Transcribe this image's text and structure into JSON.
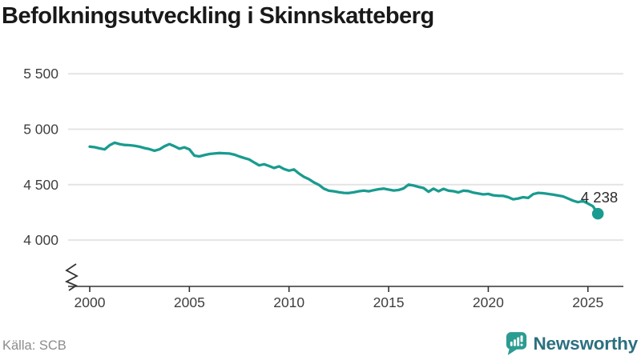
{
  "header": {
    "title": "Befolkningsutveckling i Skinnskatteberg"
  },
  "footer": {
    "source_label": "Källa: SCB",
    "brand": "Newsworthy"
  },
  "colors": {
    "line": "#1a9b8f",
    "grid": "#e4e4e4",
    "axis": "#333333",
    "tick_label": "#3f3f3f",
    "title": "#191919",
    "source": "#8c8c8c",
    "end_label": "#2b2b2b",
    "brand_icon": "#2b9c92",
    "brand_text": "#2c7080"
  },
  "chart_data": {
    "type": "line",
    "title": "Befolkningsutveckling i Skinnskatteberg",
    "xlabel": "",
    "ylabel": "",
    "x_ticks": [
      2000,
      2005,
      2010,
      2015,
      2020,
      2025
    ],
    "x_range": [
      1998.9,
      2026.8
    ],
    "y_ticks": [
      4000,
      4500,
      5000,
      5500
    ],
    "y_tick_labels": [
      "4 000",
      "4 500",
      "5 000",
      "5 500"
    ],
    "ylim_visible": [
      3950,
      5620
    ],
    "axis_break": true,
    "grid": "horizontal",
    "legend": "none",
    "end_label": "4 238",
    "end_value": 4238,
    "series": [
      {
        "name": "Befolkning",
        "points": [
          [
            2000.0,
            4843
          ],
          [
            2000.25,
            4838
          ],
          [
            2000.5,
            4827
          ],
          [
            2000.75,
            4818
          ],
          [
            2001.0,
            4856
          ],
          [
            2001.25,
            4878
          ],
          [
            2001.5,
            4866
          ],
          [
            2001.75,
            4858
          ],
          [
            2002.0,
            4856
          ],
          [
            2002.25,
            4850
          ],
          [
            2002.5,
            4842
          ],
          [
            2002.75,
            4830
          ],
          [
            2003.0,
            4820
          ],
          [
            2003.25,
            4806
          ],
          [
            2003.5,
            4818
          ],
          [
            2003.75,
            4846
          ],
          [
            2004.0,
            4866
          ],
          [
            2004.25,
            4846
          ],
          [
            2004.5,
            4824
          ],
          [
            2004.75,
            4836
          ],
          [
            2005.0,
            4818
          ],
          [
            2005.25,
            4762
          ],
          [
            2005.5,
            4755
          ],
          [
            2005.75,
            4766
          ],
          [
            2006.0,
            4776
          ],
          [
            2006.25,
            4781
          ],
          [
            2006.5,
            4785
          ],
          [
            2006.75,
            4783
          ],
          [
            2007.0,
            4781
          ],
          [
            2007.25,
            4771
          ],
          [
            2007.5,
            4755
          ],
          [
            2007.75,
            4740
          ],
          [
            2008.0,
            4727
          ],
          [
            2008.25,
            4700
          ],
          [
            2008.5,
            4674
          ],
          [
            2008.75,
            4684
          ],
          [
            2009.0,
            4668
          ],
          [
            2009.25,
            4650
          ],
          [
            2009.5,
            4665
          ],
          [
            2009.75,
            4641
          ],
          [
            2010.0,
            4626
          ],
          [
            2010.25,
            4637
          ],
          [
            2010.5,
            4600
          ],
          [
            2010.75,
            4570
          ],
          [
            2011.0,
            4549
          ],
          [
            2011.25,
            4520
          ],
          [
            2011.5,
            4498
          ],
          [
            2011.75,
            4464
          ],
          [
            2012.0,
            4445
          ],
          [
            2012.25,
            4440
          ],
          [
            2012.5,
            4432
          ],
          [
            2012.75,
            4426
          ],
          [
            2013.0,
            4424
          ],
          [
            2013.25,
            4431
          ],
          [
            2013.5,
            4440
          ],
          [
            2013.75,
            4446
          ],
          [
            2014.0,
            4440
          ],
          [
            2014.25,
            4450
          ],
          [
            2014.5,
            4459
          ],
          [
            2014.75,
            4464
          ],
          [
            2015.0,
            4455
          ],
          [
            2015.25,
            4447
          ],
          [
            2015.5,
            4452
          ],
          [
            2015.75,
            4466
          ],
          [
            2016.0,
            4500
          ],
          [
            2016.25,
            4492
          ],
          [
            2016.5,
            4480
          ],
          [
            2016.75,
            4470
          ],
          [
            2017.0,
            4436
          ],
          [
            2017.25,
            4464
          ],
          [
            2017.5,
            4440
          ],
          [
            2017.75,
            4462
          ],
          [
            2018.0,
            4446
          ],
          [
            2018.25,
            4441
          ],
          [
            2018.5,
            4430
          ],
          [
            2018.75,
            4446
          ],
          [
            2019.0,
            4442
          ],
          [
            2019.25,
            4428
          ],
          [
            2019.5,
            4420
          ],
          [
            2019.75,
            4412
          ],
          [
            2020.0,
            4416
          ],
          [
            2020.25,
            4404
          ],
          [
            2020.5,
            4400
          ],
          [
            2020.75,
            4398
          ],
          [
            2021.0,
            4387
          ],
          [
            2021.25,
            4368
          ],
          [
            2021.5,
            4375
          ],
          [
            2021.75,
            4387
          ],
          [
            2022.0,
            4380
          ],
          [
            2022.25,
            4414
          ],
          [
            2022.5,
            4426
          ],
          [
            2022.75,
            4423
          ],
          [
            2023.0,
            4416
          ],
          [
            2023.25,
            4410
          ],
          [
            2023.5,
            4402
          ],
          [
            2023.75,
            4394
          ],
          [
            2024.0,
            4375
          ],
          [
            2024.25,
            4356
          ],
          [
            2024.5,
            4342
          ],
          [
            2024.75,
            4352
          ],
          [
            2025.0,
            4330
          ],
          [
            2025.25,
            4305
          ],
          [
            2025.5,
            4238
          ]
        ]
      }
    ]
  }
}
